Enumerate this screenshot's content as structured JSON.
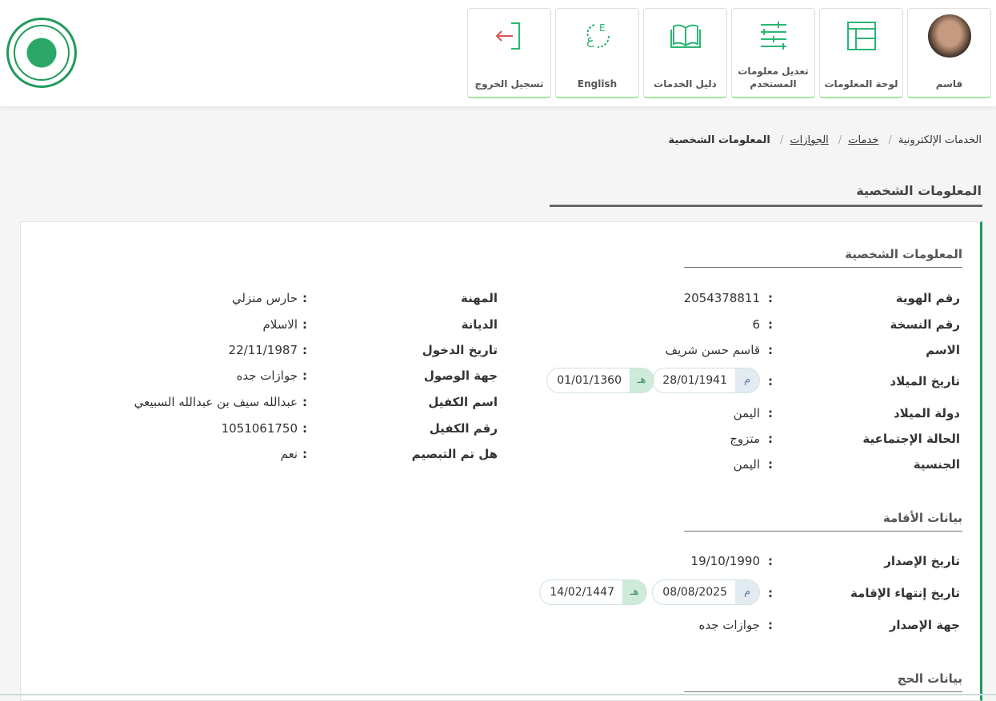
{
  "header": {
    "logo": "Saudi emblem",
    "nav": [
      {
        "label": "قاسم",
        "icon": "user-avatar"
      },
      {
        "label": "لوحة المعلومات",
        "icon": "dashboard-icon"
      },
      {
        "label": "تعديل معلومات المستخدم",
        "icon": "sliders-icon"
      },
      {
        "label": "دليل الخدمات",
        "icon": "book-icon"
      },
      {
        "label": "English",
        "icon": "language-icon"
      },
      {
        "label": "تسجيل الخروج",
        "icon": "logout-icon"
      }
    ]
  },
  "breadcrumb": {
    "items": [
      "الخدمات الإلكترونية",
      "خدمات",
      "الجوازات"
    ],
    "current": "المعلومات الشخصية"
  },
  "page_title": "المعلومات الشخصية",
  "colors": {
    "accent": "#1f9a5a",
    "logout": "#d9534f"
  },
  "sections": {
    "personal": {
      "title": "المعلومات الشخصية",
      "right": [
        {
          "label": "رقم الهوية",
          "value": "2054378811"
        },
        {
          "label": "رقم النسخة",
          "value": "6"
        },
        {
          "label": "الاسم",
          "value": "قاسم حسن شريف"
        },
        {
          "label": "تاريخ الميلاد",
          "gregorian": "28/01/1941",
          "hijri": "01/01/1360",
          "g_tag": "م",
          "h_tag": "هـ"
        },
        {
          "label": "دولة الميلاد",
          "value": "اليمن"
        },
        {
          "label": "الحالة الإجتماعية",
          "value": "متزوج"
        },
        {
          "label": "الجنسية",
          "value": "اليمن"
        }
      ],
      "left": [
        {
          "label": "المهنة",
          "value": "حارس منزلي"
        },
        {
          "label": "الديانة",
          "value": "الاسلام"
        },
        {
          "label": "تاريخ الدخول",
          "value": "22/11/1987"
        },
        {
          "label": "جهة الوصول",
          "value": "جوازات جده"
        },
        {
          "label": "اسم الكفيل",
          "value": "عبدالله سيف بن عبدالله السبيعي"
        },
        {
          "label": "رقم الكفيل",
          "value": "1051061750"
        },
        {
          "label": "هل تم التبصيم",
          "value": "نعم"
        }
      ]
    },
    "residence": {
      "title": "بيانات الأقامة",
      "rows": [
        {
          "label": "تاريخ الإصدار",
          "value": "19/10/1990"
        },
        {
          "label": "تاريخ إنتهاء الإقامة",
          "gregorian": "08/08/2025",
          "hijri": "14/02/1447",
          "g_tag": "م",
          "h_tag": "هـ"
        },
        {
          "label": "جهة الإصدار",
          "value": "جوازات جده"
        }
      ]
    },
    "hajj": {
      "title": "بيانات الحج"
    }
  },
  "colon": ":"
}
